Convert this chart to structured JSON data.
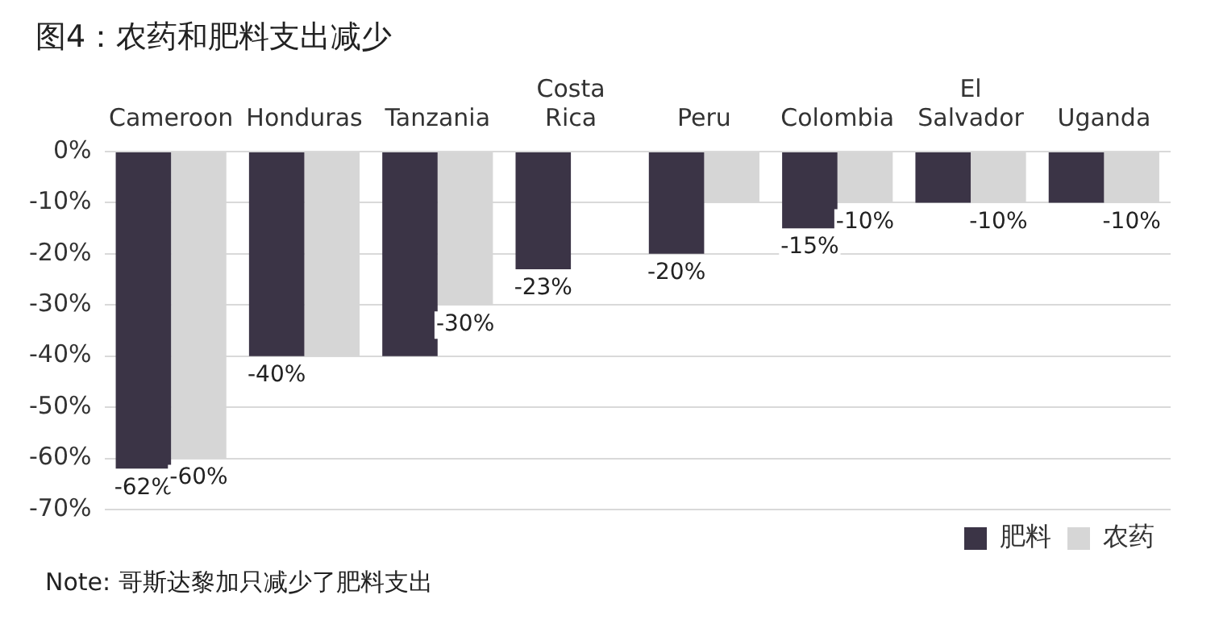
{
  "chart_data": {
    "type": "bar",
    "title": "图4：农药和肥料支出减少",
    "categories": [
      "Cameroon",
      "Honduras",
      "Tanzania",
      "Costa Rica",
      "Peru",
      "Colombia",
      "El Salvador",
      "Uganda"
    ],
    "series": [
      {
        "name": "肥料",
        "color": "#3b3446",
        "values": [
          -62,
          -40,
          -40,
          -23,
          -20,
          -15,
          -10,
          -10
        ],
        "value_labels": [
          "-62%",
          "-40%",
          null,
          "-23%",
          "-20%",
          "-15%",
          null,
          null
        ]
      },
      {
        "name": "农药",
        "color": "#d6d6d6",
        "values": [
          -60,
          -40,
          -30,
          null,
          -10,
          -10,
          -10,
          -10
        ],
        "value_labels": [
          "-60%",
          null,
          "-30%",
          null,
          null,
          "-10%",
          "-10%",
          "-10%"
        ]
      }
    ],
    "ylim": [
      -70,
      0
    ],
    "yticks": [
      {
        "value": 0,
        "label": "0%"
      },
      {
        "value": -10,
        "label": "-10%"
      },
      {
        "value": -20,
        "label": "-20%"
      },
      {
        "value": -30,
        "label": "-30%"
      },
      {
        "value": -40,
        "label": "-40%"
      },
      {
        "value": -50,
        "label": "-50%"
      },
      {
        "value": -60,
        "label": "-60%"
      },
      {
        "value": -70,
        "label": "-70%"
      }
    ],
    "grid": "y",
    "legend": "bottom right",
    "annotations": [
      "Note: 哥斯达黎加只减少了肥料支出"
    ]
  }
}
